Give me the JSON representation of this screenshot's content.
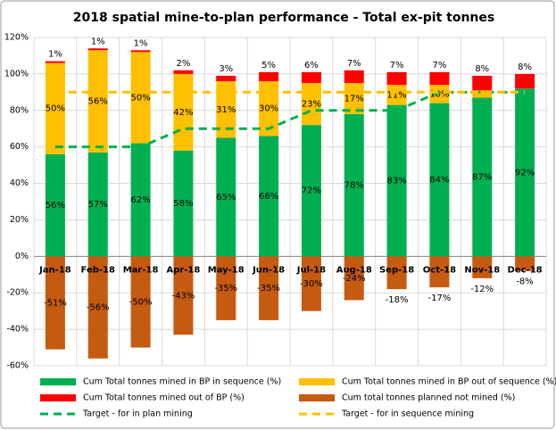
{
  "chart_data": {
    "type": "bar",
    "stacked": true,
    "title": "2018 spatial mine-to-plan performance - Total ex-pit tonnes",
    "categories": [
      "Jan-18",
      "Feb-18",
      "Mar-18",
      "Apr-18",
      "May-18",
      "Jun-18",
      "Jul-18",
      "Aug-18",
      "Sep-18",
      "Oct-18",
      "Nov-18",
      "Dec-18"
    ],
    "ylim": [
      -60,
      120
    ],
    "yticks": [
      {
        "value": -60,
        "label": "-60%"
      },
      {
        "value": -40,
        "label": "-40%"
      },
      {
        "value": -20,
        "label": "-20%"
      },
      {
        "value": 0,
        "label": "0%"
      },
      {
        "value": 20,
        "label": "20%"
      },
      {
        "value": 40,
        "label": "40%"
      },
      {
        "value": 60,
        "label": "60%"
      },
      {
        "value": 80,
        "label": "80%"
      },
      {
        "value": 100,
        "label": "100%"
      },
      {
        "value": 120,
        "label": "120%"
      }
    ],
    "grid": true,
    "legend": "bottom",
    "series": [
      {
        "name": "Cum Total tonnes mined in BP in sequence (%)",
        "color": "#00b050",
        "values": [
          56,
          57,
          62,
          58,
          65,
          66,
          72,
          78,
          83,
          84,
          87,
          92
        ],
        "value_labels": [
          "56%",
          "57%",
          "62%",
          "58%",
          "65%",
          "66%",
          "72%",
          "78%",
          "83%",
          "84%",
          "87%",
          "92%"
        ]
      },
      {
        "name": "Cum Total tonnes mined in BP out of sequence (%)",
        "color": "#ffc000",
        "values": [
          50,
          56,
          50,
          42,
          31,
          30,
          23,
          17,
          11,
          10,
          4,
          null
        ],
        "value_labels": [
          "50%",
          "56%",
          "50%",
          "42%",
          "31%",
          "30%",
          "23%",
          "17%",
          "11%",
          "10%",
          "4%",
          null
        ]
      },
      {
        "name": "Cum Total tonnes mined out of BP (%)",
        "color": "#ff0000",
        "values": [
          1,
          1,
          1,
          2,
          3,
          5,
          6,
          7,
          7,
          7,
          8,
          8
        ],
        "value_labels": [
          "1%",
          "1%",
          "1%",
          "2%",
          "3%",
          "5%",
          "6%",
          "7%",
          "7%",
          "7%",
          "8%",
          "8%"
        ]
      },
      {
        "name": "Cum total tonnes planned not mined (%)",
        "color": "#c55a11",
        "values": [
          -51,
          -56,
          -50,
          -43,
          -35,
          -35,
          -30,
          -24,
          -18,
          -17,
          -12,
          -8
        ],
        "value_labels": [
          "-51%",
          "-56%",
          "-50%",
          "-43%",
          "-35%",
          "-35%",
          "-30%",
          "-24%",
          "-18%",
          "-17%",
          "-12%",
          "-8%"
        ]
      },
      {
        "name": "Target - for in plan mining",
        "type": "line",
        "dash": true,
        "color": "#00b050",
        "values": [
          60,
          60,
          60,
          70,
          70,
          70,
          80,
          80,
          80,
          90,
          90,
          90
        ]
      },
      {
        "name": "Target - for in sequence mining",
        "type": "line",
        "dash": true,
        "color": "#ffc000",
        "values": [
          90,
          90,
          90,
          90,
          90,
          90,
          90,
          90,
          90,
          90,
          90,
          90
        ]
      }
    ]
  }
}
